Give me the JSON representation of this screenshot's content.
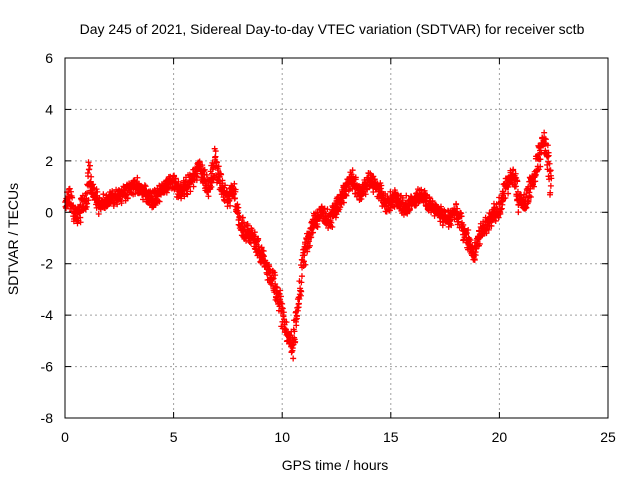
{
  "chart_data": {
    "type": "scatter",
    "title": "Day 245 of 2021, Sidereal Day-to-day VTEC variation (SDTVAR) for receiver sctb",
    "xlabel": "GPS time / hours",
    "ylabel": "SDTVAR / TECUs",
    "xlim": [
      0,
      25
    ],
    "ylim": [
      -8,
      6
    ],
    "xticks": [
      0,
      5,
      10,
      15,
      20,
      25
    ],
    "yticks": [
      -8,
      -6,
      -4,
      -2,
      0,
      2,
      4,
      6
    ],
    "grid": true,
    "marker": "+",
    "series": [
      {
        "name": "SDTVAR",
        "color": "#ff0000",
        "trend": [
          [
            0.0,
            0.3
          ],
          [
            0.2,
            0.6
          ],
          [
            0.4,
            0.0
          ],
          [
            0.6,
            -0.2
          ],
          [
            0.8,
            0.3
          ],
          [
            1.0,
            0.5
          ],
          [
            1.1,
            1.5
          ],
          [
            1.3,
            0.7
          ],
          [
            1.6,
            0.3
          ],
          [
            2.0,
            0.5
          ],
          [
            2.4,
            0.6
          ],
          [
            2.8,
            0.8
          ],
          [
            3.2,
            1.1
          ],
          [
            3.6,
            0.8
          ],
          [
            4.0,
            0.5
          ],
          [
            4.4,
            0.8
          ],
          [
            4.8,
            1.1
          ],
          [
            5.0,
            1.2
          ],
          [
            5.3,
            0.8
          ],
          [
            5.8,
            1.2
          ],
          [
            6.2,
            1.7
          ],
          [
            6.6,
            1.0
          ],
          [
            6.9,
            2.0
          ],
          [
            7.2,
            1.0
          ],
          [
            7.5,
            0.5
          ],
          [
            7.8,
            0.9
          ],
          [
            8.0,
            -0.3
          ],
          [
            8.3,
            -0.7
          ],
          [
            8.7,
            -1.0
          ],
          [
            9.0,
            -1.6
          ],
          [
            9.3,
            -2.2
          ],
          [
            9.6,
            -2.7
          ],
          [
            9.9,
            -3.5
          ],
          [
            10.1,
            -4.5
          ],
          [
            10.3,
            -4.8
          ],
          [
            10.5,
            -5.3
          ],
          [
            10.7,
            -3.8
          ],
          [
            10.9,
            -2.3
          ],
          [
            11.1,
            -1.3
          ],
          [
            11.4,
            -0.5
          ],
          [
            11.8,
            0.0
          ],
          [
            12.2,
            -0.3
          ],
          [
            12.6,
            0.3
          ],
          [
            12.9,
            0.9
          ],
          [
            13.2,
            1.3
          ],
          [
            13.6,
            0.7
          ],
          [
            14.0,
            1.2
          ],
          [
            14.4,
            0.9
          ],
          [
            14.8,
            0.3
          ],
          [
            15.2,
            0.6
          ],
          [
            15.6,
            0.2
          ],
          [
            16.0,
            0.4
          ],
          [
            16.4,
            0.7
          ],
          [
            16.8,
            0.3
          ],
          [
            17.2,
            0.0
          ],
          [
            17.6,
            -0.3
          ],
          [
            18.0,
            0.0
          ],
          [
            18.4,
            -0.8
          ],
          [
            18.8,
            -1.6
          ],
          [
            19.2,
            -0.7
          ],
          [
            19.6,
            -0.2
          ],
          [
            20.0,
            0.2
          ],
          [
            20.3,
            1.0
          ],
          [
            20.6,
            1.6
          ],
          [
            20.9,
            0.5
          ],
          [
            21.2,
            0.2
          ],
          [
            21.5,
            1.2
          ],
          [
            21.8,
            2.0
          ],
          [
            22.0,
            2.8
          ],
          [
            22.2,
            2.2
          ],
          [
            22.4,
            0.9
          ]
        ]
      }
    ]
  }
}
